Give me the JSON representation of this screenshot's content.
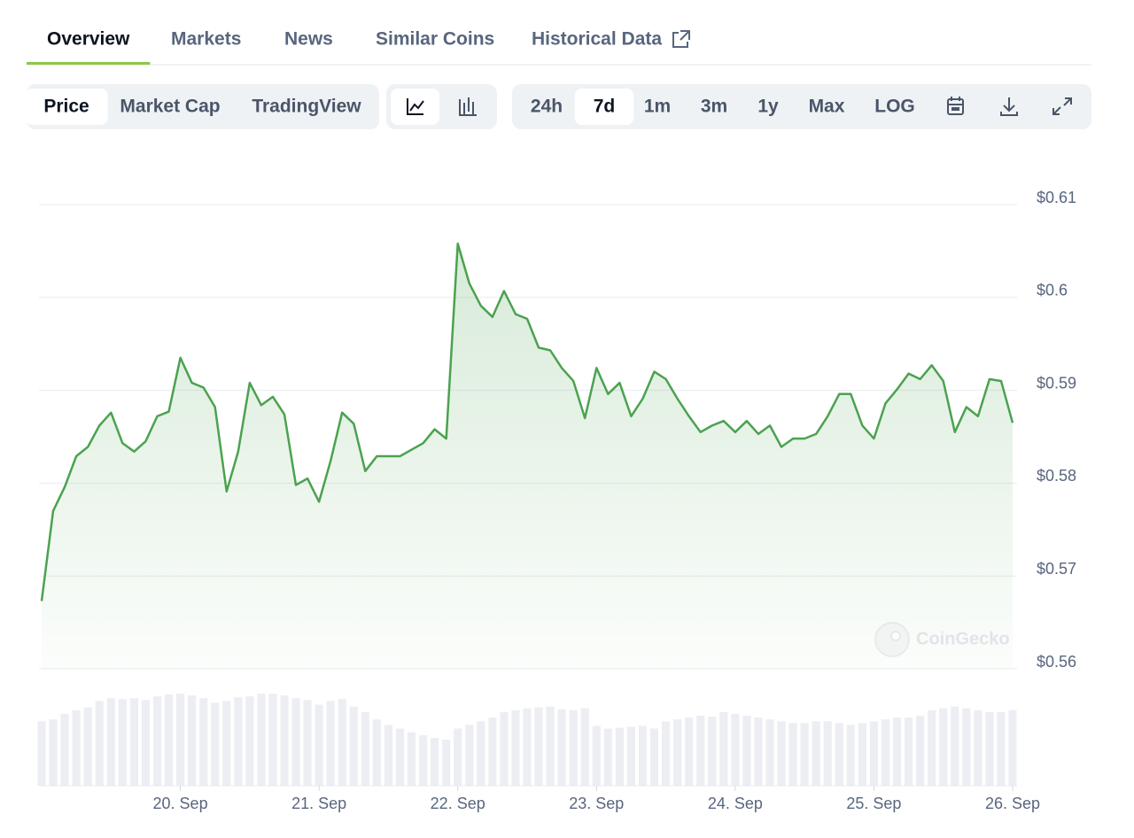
{
  "tabs": [
    "Overview",
    "Markets",
    "News",
    "Similar Coins",
    "Historical Data"
  ],
  "active_tab": 0,
  "chart_types": [
    "Price",
    "Market Cap",
    "TradingView"
  ],
  "active_chart_type": 0,
  "ranges": [
    "24h",
    "7d",
    "1m",
    "3m",
    "1y",
    "Max",
    "LOG"
  ],
  "active_range": 1,
  "watermark": "CoinGecko",
  "chart_data": {
    "type": "line",
    "xlim": [
      0,
      84
    ],
    "xticks": [
      {
        "value": 12,
        "label": "20. Sep"
      },
      {
        "value": 24,
        "label": "21. Sep"
      },
      {
        "value": 36,
        "label": "22. Sep"
      },
      {
        "value": 48,
        "label": "23. Sep"
      },
      {
        "value": 60,
        "label": "24. Sep"
      },
      {
        "value": 72,
        "label": "25. Sep"
      },
      {
        "value": 84,
        "label": "26. Sep"
      }
    ],
    "ylim": [
      0.56,
      0.61
    ],
    "yticks": [
      {
        "value": 0.56,
        "label": "$0.56"
      },
      {
        "value": 0.57,
        "label": "$0.57"
      },
      {
        "value": 0.58,
        "label": "$0.58"
      },
      {
        "value": 0.59,
        "label": "$0.59"
      },
      {
        "value": 0.6,
        "label": "$0.6"
      },
      {
        "value": 0.61,
        "label": "$0.61"
      }
    ],
    "grid": true,
    "color": "#4ba24f",
    "values": [
      0.5673,
      0.577,
      0.5796,
      0.5829,
      0.5839,
      0.5862,
      0.5876,
      0.5843,
      0.5834,
      0.5845,
      0.5872,
      0.5877,
      0.5935,
      0.5908,
      0.5903,
      0.5882,
      0.5791,
      0.5834,
      0.5908,
      0.5884,
      0.5893,
      0.5874,
      0.5798,
      0.5805,
      0.578,
      0.5824,
      0.5876,
      0.5864,
      0.5813,
      0.5829,
      0.5829,
      0.5829,
      0.5836,
      0.5843,
      0.5858,
      0.5848,
      0.6058,
      0.6015,
      0.5991,
      0.5979,
      0.6007,
      0.5982,
      0.5977,
      0.5946,
      0.5943,
      0.5924,
      0.591,
      0.587,
      0.5924,
      0.5896,
      0.5908,
      0.5872,
      0.5891,
      0.592,
      0.5912,
      0.5891,
      0.5872,
      0.5855,
      0.5862,
      0.5867,
      0.5855,
      0.5867,
      0.5853,
      0.5862,
      0.5839,
      0.5848,
      0.5848,
      0.5853,
      0.5872,
      0.5896,
      0.5896,
      0.5862,
      0.5848,
      0.5886,
      0.5901,
      0.5918,
      0.5912,
      0.5927,
      0.591,
      0.5855,
      0.5882,
      0.5872,
      0.5912,
      0.591,
      0.5865
    ],
    "volume": [
      70,
      72,
      78,
      82,
      85,
      92,
      95,
      94,
      95,
      93,
      97,
      99,
      100,
      98,
      95,
      90,
      92,
      96,
      97,
      100,
      100,
      98,
      95,
      93,
      88,
      92,
      94,
      86,
      80,
      72,
      66,
      62,
      58,
      55,
      52,
      50,
      62,
      66,
      70,
      74,
      80,
      82,
      84,
      85,
      86,
      83,
      82,
      84,
      65,
      62,
      63,
      64,
      65,
      62,
      70,
      72,
      74,
      76,
      75,
      80,
      78,
      76,
      74,
      72,
      70,
      68,
      68,
      70,
      70,
      68,
      66,
      68,
      70,
      72,
      74,
      74,
      76,
      82,
      84,
      86,
      84,
      82,
      80,
      80,
      82
    ],
    "volume_color": "#eceef3"
  }
}
